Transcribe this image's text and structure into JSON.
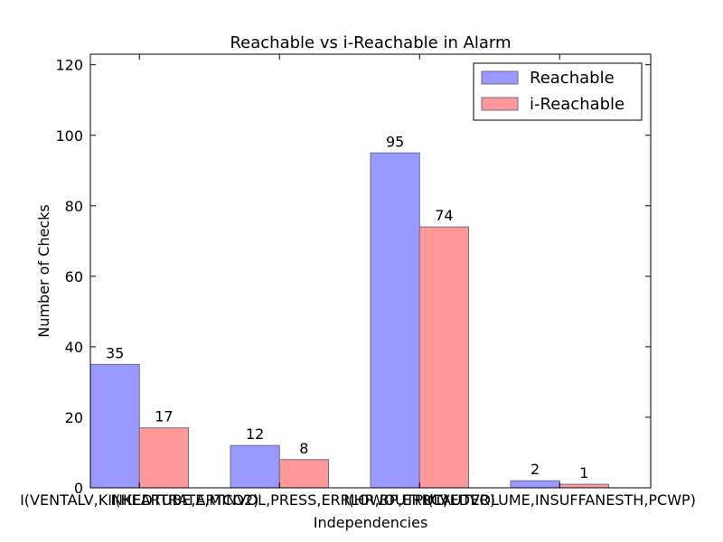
{
  "chart_data": {
    "type": "bar",
    "title": "Reachable vs i-Reachable in Alarm",
    "xlabel": "Independencies",
    "ylabel": "Number of Checks",
    "categories": [
      "I(VENTALV,KINKEDTUBE,ARTCO2)",
      "I(HEARTRATE,MINVOL,PRESS,ERRLOWOUTPUT)",
      "I(HR,BP,ERRCAUTER)",
      "I(LVEDVOLUME,INSUFFANESTH,PCWP)"
    ],
    "series": [
      {
        "name": "Reachable",
        "values": [
          35,
          12,
          95,
          2
        ],
        "color": "#9999ff"
      },
      {
        "name": "i-Reachable",
        "values": [
          17,
          8,
          74,
          1
        ],
        "color": "#ff9999"
      }
    ],
    "ylim": [
      0,
      123
    ],
    "yticks": [
      0,
      20,
      40,
      60,
      80,
      100,
      120
    ],
    "legend_position": "top-right",
    "grid": false
  }
}
